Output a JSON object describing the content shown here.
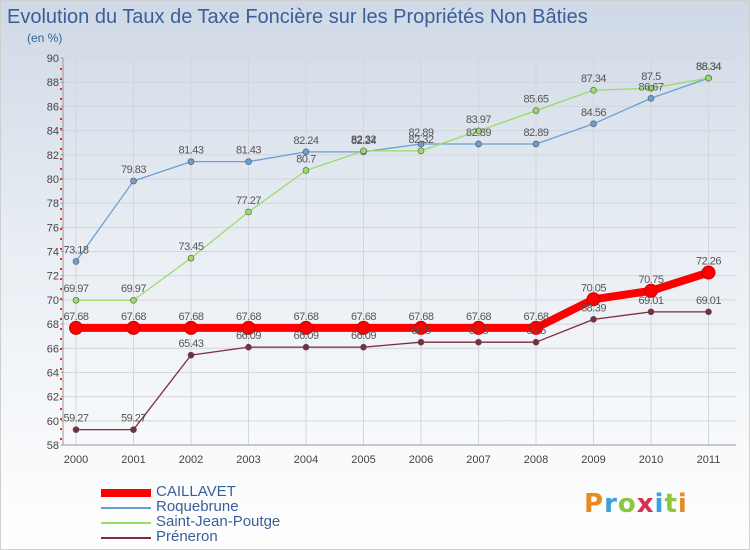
{
  "chart_data": {
    "type": "line",
    "title": "Evolution du Taux de Taxe Foncière sur les Propriétés Non Bâties",
    "subtitle": "(en %)",
    "x": [
      "2000",
      "2001",
      "2002",
      "2003",
      "2004",
      "2005",
      "2006",
      "2007",
      "2008",
      "2009",
      "2010",
      "2011"
    ],
    "ylim": [
      58,
      90
    ],
    "yticks": [
      "58",
      "60",
      "62",
      "64",
      "66",
      "68",
      "70",
      "72",
      "74",
      "76",
      "78",
      "80",
      "82",
      "84",
      "86",
      "88",
      "90"
    ],
    "grid": true,
    "series": [
      {
        "name": "CAILLAVET",
        "color": "#ff0000",
        "values": [
          67.68,
          67.68,
          67.68,
          67.68,
          67.68,
          67.68,
          67.68,
          67.68,
          67.68,
          70.05,
          70.75,
          72.26
        ],
        "labels": [
          "67.68",
          "67.68",
          "67.68",
          "67.68",
          "67.68",
          "67.68",
          "67.68",
          "67.68",
          "67.68",
          "70.05",
          "70.75",
          "72.26"
        ]
      },
      {
        "name": "Roquebrune",
        "color": "#6a9fd3",
        "values": [
          73.18,
          79.83,
          81.43,
          81.43,
          82.24,
          82.24,
          82.89,
          82.89,
          82.89,
          84.56,
          86.67,
          88.34
        ],
        "labels": [
          "73.18",
          "79.83",
          "81.43",
          "81.43",
          "82.24",
          "82.24",
          "82.89",
          "82.89",
          "82.89",
          "84.56",
          "86.67",
          "88.34"
        ]
      },
      {
        "name": "Saint-Jean-Poutge",
        "color": "#99dd66",
        "values": [
          69.97,
          69.97,
          73.45,
          77.27,
          80.7,
          82.32,
          82.32,
          83.97,
          85.65,
          87.34,
          87.5,
          88.34
        ],
        "labels": [
          "69.97",
          "69.97",
          "73.45",
          "77.27",
          "80.7",
          "82.32",
          "82.32",
          "83.97",
          "85.65",
          "87.34",
          "87.5",
          "88.34"
        ]
      },
      {
        "name": "Préneron",
        "color": "#7a2d3a",
        "values": [
          59.27,
          59.27,
          65.43,
          66.09,
          66.09,
          66.09,
          66.5,
          66.5,
          66.5,
          68.39,
          69.01,
          69.01
        ],
        "labels": [
          "59.27",
          "59.27",
          "65.43",
          "66.09",
          "66.09",
          "66.09",
          "66.5",
          "66.5",
          "66.5",
          "68.39",
          "69.01",
          "69.01"
        ]
      }
    ]
  },
  "brand": {
    "letters": [
      "P",
      "r",
      "o",
      "x",
      "i",
      "t",
      "i"
    ]
  }
}
